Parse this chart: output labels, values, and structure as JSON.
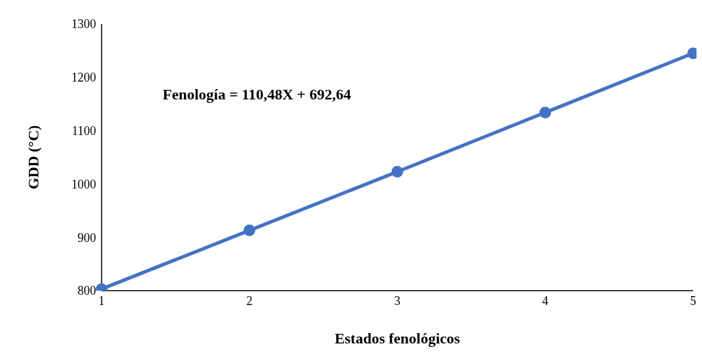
{
  "chart_data": {
    "type": "line",
    "categories": [
      "1",
      "2",
      "3",
      "4",
      "5"
    ],
    "series": [
      {
        "color": "#4472c4",
        "values": [
          803,
          913,
          1023,
          1134,
          1245
        ]
      }
    ],
    "xlabel": "Estados fenológicos",
    "ylabel": "GDD (°C)",
    "ylim": [
      800,
      1300
    ],
    "yticks": [
      800,
      900,
      1000,
      1100,
      1200,
      1300
    ],
    "annotations": [
      "Fenología = 110,48X + 692,64"
    ],
    "grid": false,
    "legend": false,
    "marker": "circle",
    "line_style": "solid"
  }
}
